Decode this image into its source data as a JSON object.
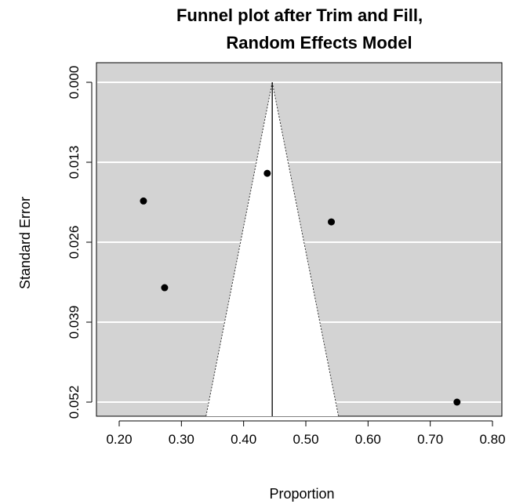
{
  "chart_data": {
    "type": "scatter",
    "title_line1": "Funnel plot after Trim and Fill,",
    "title_line2": "Random Effects Model",
    "xlabel": "Proportion",
    "ylabel": "Standard Error",
    "xlim": [
      0.2,
      0.8
    ],
    "ylim": [
      0.0,
      0.052
    ],
    "y_reversed": true,
    "x_ticks": [
      0.2,
      0.3,
      0.4,
      0.5,
      0.6,
      0.7,
      0.8
    ],
    "x_tick_labels": [
      "0.20",
      "0.30",
      "0.40",
      "0.50",
      "0.60",
      "0.70",
      "0.80"
    ],
    "y_ticks": [
      0.0,
      0.013,
      0.026,
      0.039,
      0.052
    ],
    "y_tick_labels": [
      "0.000",
      "0.013",
      "0.026",
      "0.039",
      "0.052"
    ],
    "grid": true,
    "background_color": "#d3d3d3",
    "funnel_color": "#ffffff",
    "pooled_estimate": 0.446,
    "funnel_bounds_at_max_se": [
      0.344,
      0.548
    ],
    "points": [
      {
        "x": 0.239,
        "y": 0.0193
      },
      {
        "x": 0.273,
        "y": 0.0334
      },
      {
        "x": 0.438,
        "y": 0.0148
      },
      {
        "x": 0.541,
        "y": 0.0227
      },
      {
        "x": 0.743,
        "y": 0.052
      }
    ]
  }
}
